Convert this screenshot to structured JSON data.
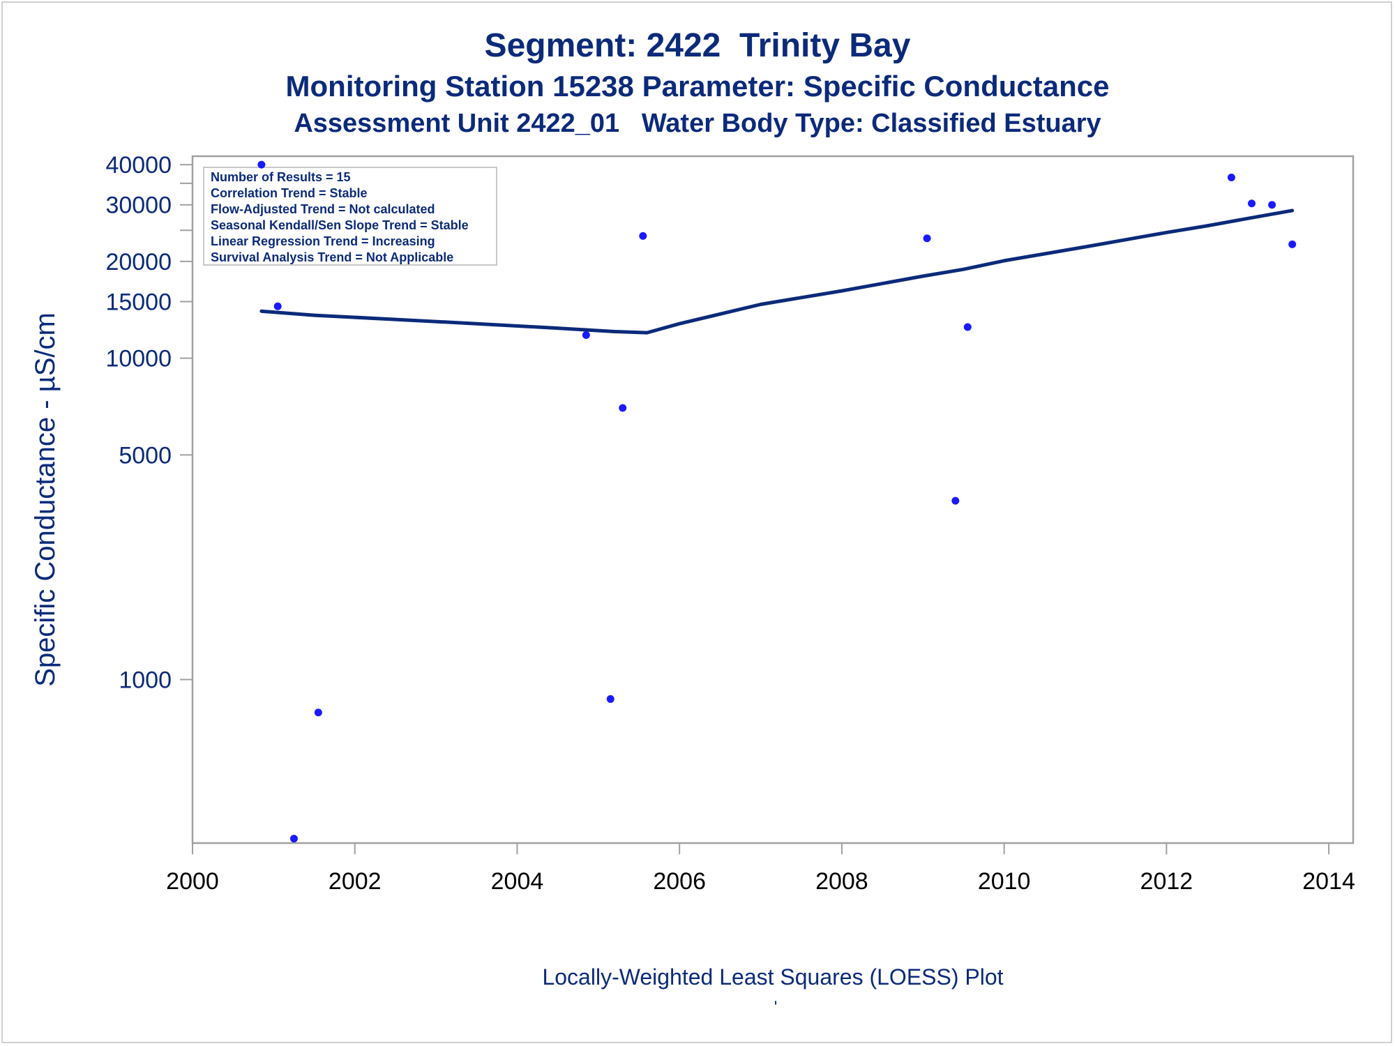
{
  "header": {
    "title": "Segment: 2422  Trinity Bay",
    "subtitle": "Monitoring Station 15238 Parameter: Specific Conductance",
    "subtitle2": "Assessment Unit 2422_01   Water Body Type: Classified Estuary"
  },
  "stats_box": [
    "Number of Results = 15",
    "Correlation Trend = Stable",
    "Flow-Adjusted Trend = Not calculated",
    "Seasonal Kendall/Sen Slope Trend = Stable",
    "Linear Regression Trend = Increasing",
    "Survival Analysis Trend = Not Applicable"
  ],
  "footer": {
    "plot_label": "Locally-Weighted Least Squares (LOESS) Plot",
    "mark": "'"
  },
  "colors": {
    "text": "#0b2a7a",
    "points": "#1a1aff",
    "loess_line": "#0b2a7a",
    "frame": "#a0a0a0"
  },
  "chart_data": {
    "type": "scatter",
    "title": "Segment: 2422  Trinity Bay",
    "ylabel": "Specific Conductance -  µS/cm",
    "xlabel": "",
    "yscale": "log",
    "xlim": [
      2000,
      2014.3
    ],
    "ylim": [
      310,
      42500
    ],
    "xticks": [
      2000,
      2002,
      2004,
      2006,
      2008,
      2010,
      2012,
      2014
    ],
    "yticks": [
      1000,
      5000,
      10000,
      15000,
      20000,
      30000,
      40000
    ],
    "yticks_minor": [
      25000,
      35000
    ],
    "grid": false,
    "series": [
      {
        "kind": "points",
        "x": [
          2000.85,
          2001.05,
          2001.25,
          2001.55,
          2004.85,
          2005.15,
          2005.3,
          2005.55,
          2009.05,
          2009.4,
          2009.55,
          2012.8,
          2013.05,
          2013.3,
          2013.55
        ],
        "y": [
          40000,
          14500,
          320,
          790,
          11800,
          870,
          7000,
          24000,
          23600,
          3600,
          12500,
          36500,
          30300,
          30000,
          22600
        ]
      },
      {
        "kind": "line",
        "x": [
          2000.85,
          2001.5,
          2002.5,
          2003.5,
          2004.5,
          2005.2,
          2005.6,
          2006.0,
          2007.0,
          2008.0,
          2009.0,
          2009.5,
          2010.0,
          2011.0,
          2012.0,
          2012.5,
          2013.0,
          2013.55
        ],
        "y": [
          14000,
          13600,
          13200,
          12800,
          12400,
          12100,
          12000,
          12800,
          14700,
          16200,
          18000,
          18900,
          20100,
          22200,
          24600,
          25800,
          27200,
          28800
        ]
      }
    ]
  }
}
